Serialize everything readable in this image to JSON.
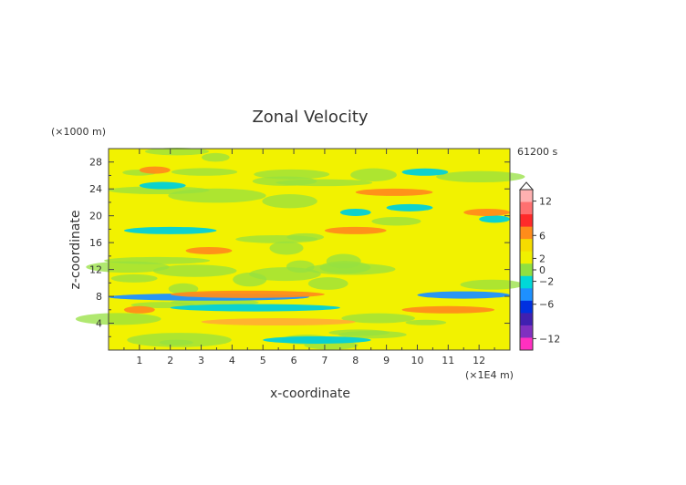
{
  "chart_data": {
    "type": "heatmap",
    "title": "Zonal Velocity",
    "time_label": "61200 s",
    "xlabel": "x-coordinate",
    "ylabel": "z-coordinate",
    "x_unit": "(×1E4 m)",
    "y_unit": "(×1000 m)",
    "xlim": [
      0,
      13
    ],
    "ylim": [
      0,
      30
    ],
    "xticks": [
      "1",
      "2",
      "3",
      "4",
      "5",
      "6",
      "7",
      "8",
      "9",
      "10",
      "11",
      "12"
    ],
    "yticks": [
      "4",
      "8",
      "12",
      "16",
      "20",
      "24",
      "28"
    ],
    "colorbar": {
      "labels": [
        "12",
        "6",
        "2",
        "0",
        "−2",
        "−6",
        "−12"
      ],
      "label_values": [
        12,
        6,
        2,
        0,
        -2,
        -6,
        -12
      ],
      "colors": [
        "#ffb0b0",
        "#ff7070",
        "#ff2a2a",
        "#ff8c1a",
        "#f5dc00",
        "#f0f000",
        "#90e040",
        "#00d8d8",
        "#1e90ff",
        "#0030e0",
        "#4020b0",
        "#8030c0",
        "#ff30c0"
      ]
    },
    "field_features": [
      {
        "x0": 0.0,
        "x1": 6.5,
        "z": 7.9,
        "value": -4
      },
      {
        "x0": 2.0,
        "x1": 7.5,
        "z": 6.3,
        "value": -2
      },
      {
        "x0": 2.0,
        "x1": 7.0,
        "z": 8.3,
        "value": 3
      },
      {
        "x0": 0.5,
        "x1": 1.5,
        "z": 6.0,
        "value": 3
      },
      {
        "x0": 10.0,
        "x1": 13.0,
        "z": 8.2,
        "value": -4
      },
      {
        "x0": 9.5,
        "x1": 12.5,
        "z": 6.0,
        "value": 3
      },
      {
        "x0": 3.0,
        "x1": 8.0,
        "z": 4.2,
        "value": 2
      },
      {
        "x0": 5.0,
        "x1": 8.5,
        "z": 1.5,
        "value": -2
      },
      {
        "x0": 0.5,
        "x1": 3.5,
        "z": 17.8,
        "value": -2
      },
      {
        "x0": 7.5,
        "x1": 8.5,
        "z": 20.5,
        "value": -2
      },
      {
        "x0": 9.0,
        "x1": 10.5,
        "z": 21.2,
        "value": -2
      },
      {
        "x0": 12.0,
        "x1": 13.0,
        "z": 19.5,
        "value": -2
      },
      {
        "x0": 1.0,
        "x1": 2.5,
        "z": 24.5,
        "value": -2
      },
      {
        "x0": 9.5,
        "x1": 11.0,
        "z": 26.5,
        "value": -2
      },
      {
        "x0": 8.0,
        "x1": 10.5,
        "z": 23.5,
        "value": 3
      },
      {
        "x0": 2.5,
        "x1": 4.0,
        "z": 14.8,
        "value": 3
      },
      {
        "x0": 7.0,
        "x1": 9.0,
        "z": 17.8,
        "value": 3
      },
      {
        "x0": 1.0,
        "x1": 2.0,
        "z": 26.8,
        "value": 3
      },
      {
        "x0": 11.5,
        "x1": 13.0,
        "z": 20.5,
        "value": 3
      }
    ]
  }
}
